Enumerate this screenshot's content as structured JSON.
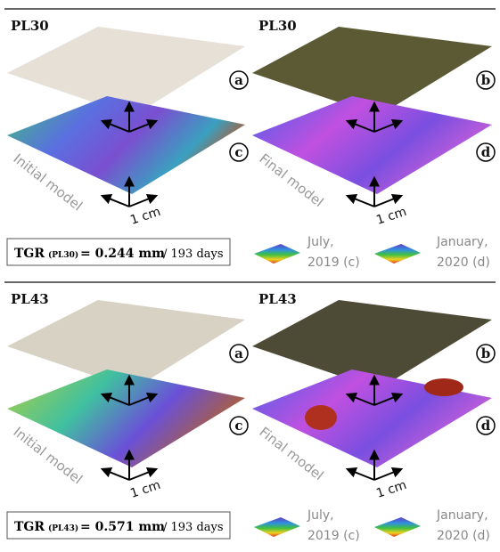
{
  "panels": [
    {
      "left_label": "PL30",
      "right_label": "PL30",
      "letters": [
        "a",
        "b",
        "c",
        "d"
      ],
      "left_model": "Initial model",
      "right_model": "Final model",
      "scale": "1 cm",
      "tgr": {
        "label": "TGR",
        "sub": "(PL30)",
        "value": "= 0.244 mm",
        "days": "/ 193 days"
      },
      "legend": [
        {
          "line1": "July,",
          "line2": "2019 (c)"
        },
        {
          "line1": "January,",
          "line2": "2020 (d)"
        }
      ]
    },
    {
      "left_label": "PL43",
      "right_label": "PL43",
      "letters": [
        "a",
        "b",
        "c",
        "d"
      ],
      "left_model": "Initial model",
      "right_model": "Final model",
      "scale": "1 cm",
      "tgr": {
        "label": "TGR",
        "sub": "(PL43)",
        "value": "= 0.571 mm",
        "days": "/ 193 days"
      },
      "legend": [
        {
          "line1": "July,",
          "line2": "2019 (c)"
        },
        {
          "line1": "January,",
          "line2": "2020 (d)"
        }
      ]
    }
  ]
}
